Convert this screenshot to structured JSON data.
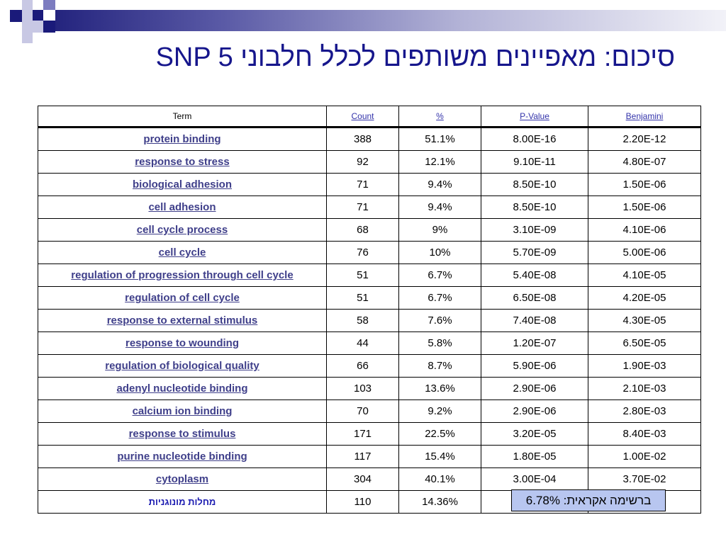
{
  "title": "סיכום: מאפיינים משותפים לכלל חלבוני SNP 5",
  "table": {
    "headers": {
      "term": "Term",
      "count": "Count",
      "percent": "%",
      "pvalue": "P-Value",
      "benjamini": "Benjamini"
    },
    "rows": [
      {
        "term": "protein binding",
        "count": "388",
        "percent": "51.1%",
        "pvalue": "8.00E-16",
        "benjamini": "2.20E-12"
      },
      {
        "term": "response to stress",
        "count": "92",
        "percent": "12.1%",
        "pvalue": "9.10E-11",
        "benjamini": "4.80E-07"
      },
      {
        "term": "biological adhesion",
        "count": "71",
        "percent": "9.4%",
        "pvalue": "8.50E-10",
        "benjamini": "1.50E-06"
      },
      {
        "term": "cell adhesion",
        "count": "71",
        "percent": "9.4%",
        "pvalue": "8.50E-10",
        "benjamini": "1.50E-06"
      },
      {
        "term": "cell cycle process",
        "count": "68",
        "percent": "9%",
        "pvalue": "3.10E-09",
        "benjamini": "4.10E-06"
      },
      {
        "term": "cell cycle",
        "count": "76",
        "percent": "10%",
        "pvalue": "5.70E-09",
        "benjamini": "5.00E-06"
      },
      {
        "term": "regulation of progression through cell cycle",
        "count": "51",
        "percent": "6.7%",
        "pvalue": "5.40E-08",
        "benjamini": "4.10E-05"
      },
      {
        "term": "regulation of cell cycle",
        "count": "51",
        "percent": "6.7%",
        "pvalue": "6.50E-08",
        "benjamini": "4.20E-05"
      },
      {
        "term": "response to external stimulus",
        "count": "58",
        "percent": "7.6%",
        "pvalue": "7.40E-08",
        "benjamini": "4.30E-05"
      },
      {
        "term": "response to wounding",
        "count": "44",
        "percent": "5.8%",
        "pvalue": "1.20E-07",
        "benjamini": "6.50E-05"
      },
      {
        "term": "regulation of biological quality",
        "count": "66",
        "percent": "8.7%",
        "pvalue": "5.90E-06",
        "benjamini": "1.90E-03"
      },
      {
        "term": "adenyl nucleotide binding",
        "count": "103",
        "percent": "13.6%",
        "pvalue": "2.90E-06",
        "benjamini": "2.10E-03"
      },
      {
        "term": "calcium ion binding",
        "count": "70",
        "percent": "9.2%",
        "pvalue": "2.90E-06",
        "benjamini": "2.80E-03"
      },
      {
        "term": "response to stimulus",
        "count": "171",
        "percent": "22.5%",
        "pvalue": "3.20E-05",
        "benjamini": "8.40E-03"
      },
      {
        "term": "purine nucleotide binding",
        "count": "117",
        "percent": "15.4%",
        "pvalue": "1.80E-05",
        "benjamini": "1.00E-02"
      },
      {
        "term": "cytoplasm",
        "count": "304",
        "percent": "40.1%",
        "pvalue": "3.00E-04",
        "benjamini": "3.70E-02"
      }
    ],
    "last_row": {
      "term": "מחלות מונוגניות",
      "count": "110",
      "percent": "14.36%"
    }
  },
  "callout": "ברשימה אקראית: 6.78%",
  "colors": {
    "title": "#16168c",
    "link": "#3f3f8a",
    "callout_bg": "#b8c6f0",
    "accent_navy": "#1a1a7a"
  }
}
